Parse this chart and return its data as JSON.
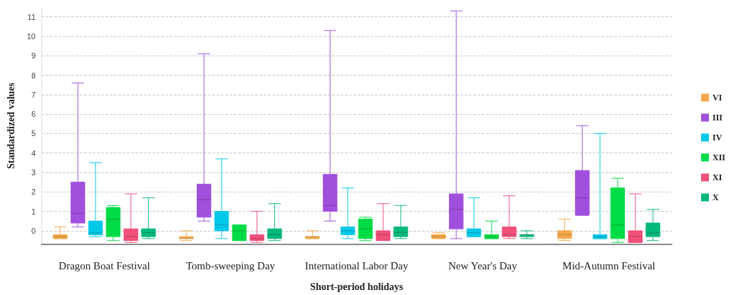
{
  "chart_data": {
    "type": "box",
    "xlabel": "Short-period holidays",
    "ylabel": "Standardized values",
    "categories": [
      "Dragon Boat Festival",
      "Tomb-sweeping Day",
      "International Labor Day",
      "New Year's Day",
      "Mid-Autumn Festival"
    ],
    "ylim": [
      -0.7,
      11.5
    ],
    "yticks": [
      0,
      1,
      2,
      3,
      4,
      5,
      6,
      7,
      8,
      9,
      10,
      11
    ],
    "grid": "y",
    "legend": "right",
    "series": [
      {
        "name": "VI",
        "color": "#f4a84a",
        "boxes": [
          {
            "low": -0.4,
            "q1": -0.4,
            "median": -0.3,
            "q3": -0.2,
            "high": 0.2
          },
          {
            "low": -0.5,
            "q1": -0.4,
            "median": -0.4,
            "q3": -0.3,
            "high": 0.0
          },
          {
            "low": -0.4,
            "q1": -0.4,
            "median": -0.3,
            "q3": -0.3,
            "high": 0.0
          },
          {
            "low": -0.4,
            "q1": -0.4,
            "median": -0.3,
            "q3": -0.2,
            "high": -0.1
          },
          {
            "low": -0.5,
            "q1": -0.4,
            "median": -0.2,
            "q3": 0.0,
            "high": 0.6
          }
        ]
      },
      {
        "name": "III",
        "color": "#a050dc",
        "boxes": [
          {
            "low": 0.2,
            "q1": 0.4,
            "median": 0.9,
            "q3": 2.5,
            "high": 7.6
          },
          {
            "low": 0.5,
            "q1": 0.7,
            "median": 1.6,
            "q3": 2.4,
            "high": 9.1
          },
          {
            "low": 0.5,
            "q1": 1.0,
            "median": 1.3,
            "q3": 2.9,
            "high": 10.3
          },
          {
            "low": -0.4,
            "q1": 0.1,
            "median": 1.1,
            "q3": 1.9,
            "high": 11.3
          },
          {
            "low": 0.8,
            "q1": 0.8,
            "median": 1.7,
            "q3": 3.1,
            "high": 5.4
          }
        ]
      },
      {
        "name": "IV",
        "color": "#00c8e8",
        "boxes": [
          {
            "low": -0.3,
            "q1": -0.2,
            "median": -0.1,
            "q3": 0.5,
            "high": 3.5
          },
          {
            "low": -0.4,
            "q1": 0.0,
            "median": 0.3,
            "q3": 1.0,
            "high": 3.7
          },
          {
            "low": -0.4,
            "q1": -0.2,
            "median": 0.0,
            "q3": 0.2,
            "high": 2.2
          },
          {
            "low": -0.3,
            "q1": -0.3,
            "median": -0.1,
            "q3": 0.1,
            "high": 1.7
          },
          {
            "low": -0.4,
            "q1": -0.4,
            "median": -0.3,
            "q3": -0.2,
            "high": 5.0
          }
        ]
      },
      {
        "name": "XII",
        "color": "#00dc46",
        "boxes": [
          {
            "low": -0.5,
            "q1": -0.3,
            "median": 0.6,
            "q3": 1.2,
            "high": 1.3
          },
          {
            "low": -0.5,
            "q1": -0.5,
            "median": 0.0,
            "q3": 0.3,
            "high": 0.3
          },
          {
            "low": -0.5,
            "q1": -0.4,
            "median": 0.1,
            "q3": 0.6,
            "high": 0.7
          },
          {
            "low": -0.4,
            "q1": -0.4,
            "median": -0.3,
            "q3": -0.2,
            "high": 0.5
          },
          {
            "low": -0.6,
            "q1": -0.4,
            "median": 0.3,
            "q3": 2.2,
            "high": 2.7
          }
        ]
      },
      {
        "name": "XI",
        "color": "#f0507a",
        "boxes": [
          {
            "low": -0.6,
            "q1": -0.5,
            "median": -0.3,
            "q3": 0.1,
            "high": 1.9
          },
          {
            "low": -0.6,
            "q1": -0.5,
            "median": -0.4,
            "q3": -0.2,
            "high": 1.0
          },
          {
            "low": -0.5,
            "q1": -0.5,
            "median": -0.2,
            "q3": 0.0,
            "high": 1.4
          },
          {
            "low": -0.4,
            "q1": -0.3,
            "median": -0.2,
            "q3": 0.2,
            "high": 1.8
          },
          {
            "low": -0.6,
            "q1": -0.6,
            "median": -0.3,
            "q3": 0.0,
            "high": 1.9
          }
        ]
      },
      {
        "name": "X",
        "color": "#00b87a",
        "boxes": [
          {
            "low": -0.4,
            "q1": -0.3,
            "median": -0.1,
            "q3": 0.1,
            "high": 1.7
          },
          {
            "low": -0.5,
            "q1": -0.4,
            "median": -0.2,
            "q3": 0.1,
            "high": 1.4
          },
          {
            "low": -0.4,
            "q1": -0.3,
            "median": -0.1,
            "q3": 0.2,
            "high": 1.3
          },
          {
            "low": -0.4,
            "q1": -0.3,
            "median": -0.2,
            "q3": -0.2,
            "high": 0.0
          },
          {
            "low": -0.5,
            "q1": -0.3,
            "median": -0.1,
            "q3": 0.4,
            "high": 1.1
          }
        ]
      }
    ]
  }
}
